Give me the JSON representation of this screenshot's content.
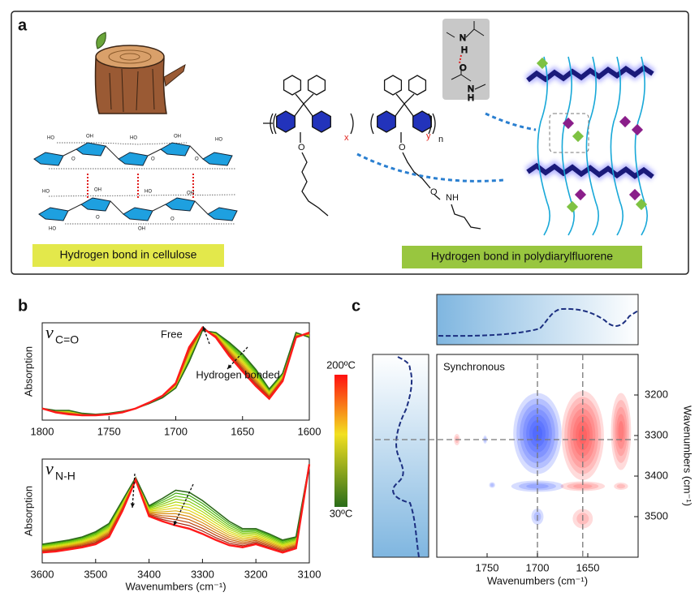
{
  "panels": {
    "a": "a",
    "b": "b",
    "c": "c"
  },
  "diagram": {
    "cellulose_caption": "Hydrogen bond in cellulose",
    "polymer_caption": "Hydrogen bond in polydiarylfluorene",
    "repeat_x": "x",
    "repeat_y": "y",
    "repeat_n": "n",
    "side_chain_o": "O",
    "amide_o": "O",
    "amide_nh": "NH",
    "model_labels": [
      "N",
      "H",
      "O",
      "N",
      "H"
    ],
    "cellulose_labels": [
      "HO",
      "OH",
      "HO",
      "OH",
      "HO",
      "O",
      "O",
      "O",
      "HO",
      "OH",
      "HO",
      "OH",
      "O",
      "O",
      "HO",
      "OH"
    ]
  },
  "chart_data": [
    {
      "type": "line",
      "ylabel": "Absorption",
      "symbol": "v",
      "subscript": "C=O",
      "annotations": [
        "Free",
        "Hydrogen bonded"
      ],
      "x": [
        1800,
        1790,
        1780,
        1770,
        1760,
        1750,
        1740,
        1730,
        1720,
        1710,
        1700,
        1690,
        1680,
        1670,
        1660,
        1650,
        1640,
        1630,
        1620,
        1610,
        1600
      ],
      "xlim": [
        1800,
        1600
      ],
      "xticks": [
        1800,
        1750,
        1700,
        1650,
        1600
      ],
      "ylim": [
        0,
        1
      ],
      "series": [
        {
          "name": "30ºC",
          "color": "#2f6b1c",
          "values": [
            0.12,
            0.1,
            0.1,
            0.07,
            0.06,
            0.07,
            0.09,
            0.12,
            0.17,
            0.23,
            0.33,
            0.6,
            0.92,
            0.9,
            0.8,
            0.68,
            0.52,
            0.32,
            0.48,
            0.9,
            0.85
          ]
        },
        {
          "name": "200ºC",
          "color": "#ff1a1a",
          "values": [
            0.12,
            0.08,
            0.06,
            0.05,
            0.05,
            0.06,
            0.08,
            0.12,
            0.18,
            0.25,
            0.38,
            0.75,
            0.95,
            0.85,
            0.66,
            0.5,
            0.35,
            0.22,
            0.4,
            0.85,
            0.9
          ]
        }
      ]
    },
    {
      "type": "line",
      "ylabel": "Absorption",
      "symbol": "v",
      "subscript": "N-H",
      "xlabel": "Wavenumbers (cm⁻¹)",
      "x": [
        3600,
        3575,
        3550,
        3525,
        3500,
        3475,
        3450,
        3425,
        3400,
        3375,
        3350,
        3325,
        3300,
        3275,
        3250,
        3225,
        3200,
        3175,
        3150,
        3125,
        3100
      ],
      "xlim": [
        3600,
        3100
      ],
      "xticks": [
        3600,
        3500,
        3400,
        3300,
        3200,
        3100
      ],
      "ylim": [
        0,
        1
      ],
      "series": [
        {
          "color": "#2f6b1c",
          "values": [
            0.18,
            0.2,
            0.22,
            0.25,
            0.3,
            0.38,
            0.6,
            0.82,
            0.55,
            0.62,
            0.7,
            0.68,
            0.6,
            0.5,
            0.4,
            0.33,
            0.33,
            0.28,
            0.22,
            0.25,
            0.95
          ]
        },
        {
          "color": "#ff1a1a",
          "values": [
            0.1,
            0.11,
            0.13,
            0.15,
            0.18,
            0.25,
            0.5,
            0.8,
            0.45,
            0.4,
            0.36,
            0.33,
            0.28,
            0.22,
            0.17,
            0.15,
            0.18,
            0.14,
            0.1,
            0.14,
            0.95
          ]
        }
      ]
    },
    {
      "type": "contour",
      "title": "Synchronous",
      "xlabel": "Wavenumbers (cm⁻¹)",
      "ylabel": "Wavenumbers (cm⁻¹)",
      "xlim": [
        1800,
        1600
      ],
      "xticks": [
        1750,
        1700,
        1650
      ],
      "ylim": [
        3100,
        3600
      ],
      "yticks": [
        3200,
        3300,
        3400,
        3500
      ],
      "positive_color": "#ff2a2a",
      "negative_color": "#1433ff",
      "peaks": [
        {
          "x": 1700,
          "y": 3295,
          "rx": 24,
          "ry": 100,
          "value": -1
        },
        {
          "x": 1655,
          "y": 3300,
          "rx": 21,
          "ry": 110,
          "value": 1
        },
        {
          "x": 1617,
          "y": 3290,
          "rx": 10,
          "ry": 95,
          "value": 0.6
        },
        {
          "x": 1780,
          "y": 3310,
          "rx": 3,
          "ry": 14,
          "value": 0.2
        },
        {
          "x": 1752,
          "y": 3310,
          "rx": 2,
          "ry": 10,
          "value": -0.15
        },
        {
          "x": 1700,
          "y": 3425,
          "rx": 26,
          "ry": 14,
          "value": -0.35
        },
        {
          "x": 1655,
          "y": 3425,
          "rx": 22,
          "ry": 12,
          "value": 0.3
        },
        {
          "x": 1617,
          "y": 3425,
          "rx": 7,
          "ry": 9,
          "value": 0.2
        },
        {
          "x": 1745,
          "y": 3422,
          "rx": 3,
          "ry": 7,
          "value": -0.2
        },
        {
          "x": 1700,
          "y": 3500,
          "rx": 6,
          "ry": 20,
          "value": -0.25
        },
        {
          "x": 1655,
          "y": 3505,
          "rx": 10,
          "ry": 24,
          "value": 0.25
        }
      ],
      "guides": {
        "x": [
          1700,
          1655
        ],
        "y": [
          3310
        ]
      }
    }
  ]
}
